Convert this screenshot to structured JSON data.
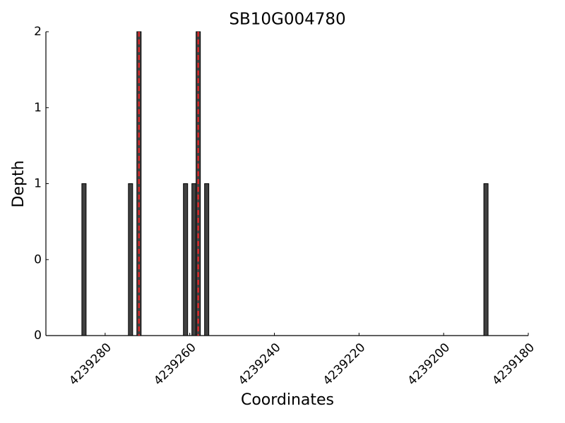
{
  "chart_data": {
    "type": "bar",
    "title": "SB10G004780",
    "x_label": "Coordinates",
    "y_label": "Depth",
    "x": [
      4239285,
      4239274,
      4239272,
      4239261,
      4239259,
      4239258,
      4239256,
      4239190
    ],
    "values": [
      1,
      1,
      2,
      1,
      1,
      2,
      1,
      1
    ],
    "color": "#404040",
    "xlim": [
      4239294,
      4239180
    ],
    "xticks": [
      4239280,
      4239260,
      4239240,
      4239220,
      4239200,
      4239180
    ],
    "ylim": [
      0,
      2
    ],
    "yticks": [
      0,
      {
        "value": 0.5,
        "label": "0"
      },
      1,
      {
        "value": 1.5,
        "label": "1"
      },
      2
    ],
    "vlines": [
      4239272,
      4239258
    ],
    "vline_color": "#d62728",
    "grid": false
  }
}
